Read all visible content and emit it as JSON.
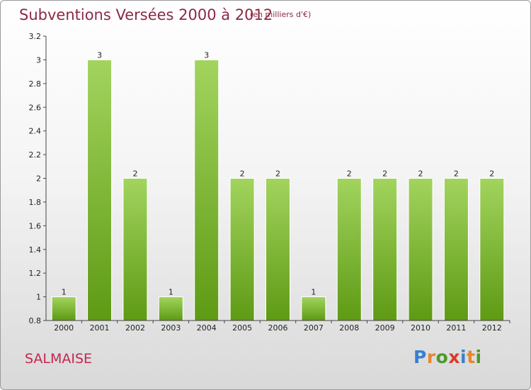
{
  "title": "Subventions Versées 2000 à 2012",
  "subtitle": "(en milliers d'€)",
  "commune": "SALMAISE",
  "logo": {
    "letters": [
      "P",
      "r",
      "o",
      "x",
      "i",
      "t",
      "i"
    ],
    "colors": [
      "#3a7fd0",
      "#e8862a",
      "#4c9a2a",
      "#d93a2a",
      "#3a7fd0",
      "#e8862a",
      "#4c9a2a"
    ]
  },
  "colors": {
    "bar_light": "#a2d45e",
    "bar_dark": "#5e9a14",
    "title": "#8b2a43",
    "commune": "#c4264e"
  },
  "chart_data": {
    "type": "bar",
    "categories": [
      "2000",
      "2001",
      "2002",
      "2003",
      "2004",
      "2005",
      "2006",
      "2007",
      "2008",
      "2009",
      "2010",
      "2011",
      "2012"
    ],
    "values": [
      1,
      3,
      2,
      1,
      3,
      2,
      2,
      1,
      2,
      2,
      2,
      2,
      2
    ],
    "data_labels": [
      "1",
      "3",
      "2",
      "1",
      "3",
      "2",
      "2",
      "1",
      "2",
      "2",
      "2",
      "2",
      "2"
    ],
    "yticks": [
      0.8,
      1,
      1.2,
      1.4,
      1.6,
      1.8,
      2,
      2.2,
      2.4,
      2.6,
      2.8,
      3,
      3.2
    ],
    "ytick_labels": [
      "0.8",
      "1",
      "1.2",
      "1.4",
      "1.6",
      "1.8",
      "2",
      "2.2",
      "2.4",
      "2.6",
      "2.8",
      "3",
      "3.2"
    ],
    "ylim": [
      0.8,
      3.2
    ],
    "grid": false,
    "title": "Subventions Versées 2000 à 2012",
    "xlabel": "",
    "ylabel": ""
  }
}
